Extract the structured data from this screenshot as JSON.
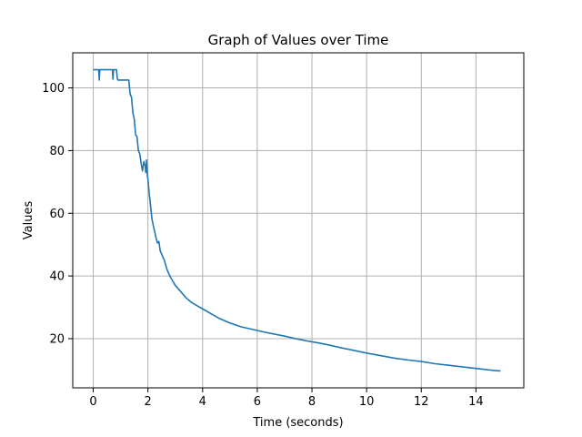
{
  "chart_data": {
    "type": "line",
    "title": "Graph of Values over Time",
    "xlabel": "Time (seconds)",
    "ylabel": "Values",
    "xlim": [
      -0.75,
      15.75
    ],
    "ylim": [
      4.3,
      111.2
    ],
    "xticks": [
      0,
      2,
      4,
      6,
      8,
      10,
      12,
      14
    ],
    "yticks": [
      20,
      40,
      60,
      80,
      100
    ],
    "grid": true,
    "series": [
      {
        "color": "#1f77b4",
        "x": [
          0,
          0.15,
          0.2,
          0.22,
          0.24,
          0.3,
          0.5,
          0.7,
          0.72,
          0.74,
          0.78,
          0.85,
          0.88,
          0.9,
          1.0,
          1.1,
          1.3,
          1.35,
          1.4,
          1.45,
          1.5,
          1.55,
          1.6,
          1.65,
          1.7,
          1.75,
          1.8,
          1.85,
          1.9,
          1.92,
          1.95,
          1.98,
          2.0,
          2.02,
          2.05,
          2.08,
          2.1,
          2.15,
          2.2,
          2.25,
          2.3,
          2.35,
          2.4,
          2.45,
          2.5,
          2.55,
          2.6,
          2.65,
          2.7,
          2.75,
          2.8,
          2.9,
          3.0,
          3.2,
          3.4,
          3.6,
          3.8,
          4.0,
          4.3,
          4.6,
          5.0,
          5.4,
          5.8,
          6.2,
          6.6,
          7.0,
          7.4,
          7.8,
          8.2,
          8.6,
          9.0,
          9.5,
          10.0,
          10.5,
          11.0,
          11.5,
          12.0,
          12.5,
          13.0,
          13.5,
          14.0,
          14.3,
          14.5,
          14.7,
          14.9
        ],
        "values": [
          105.8,
          105.8,
          105.8,
          102.5,
          105.8,
          105.8,
          105.8,
          105.8,
          102.8,
          105.8,
          105.8,
          105.8,
          103.0,
          102.5,
          102.5,
          102.5,
          102.5,
          98.0,
          97.0,
          92.0,
          90.0,
          85.0,
          84.5,
          80.0,
          79.0,
          76.0,
          73.5,
          76.5,
          75.0,
          73.0,
          77.0,
          72.0,
          71.0,
          69.0,
          66.0,
          64.0,
          62.0,
          58.0,
          56.0,
          54.0,
          52.0,
          50.5,
          51.0,
          48.0,
          47.0,
          46.0,
          45.0,
          43.5,
          42.0,
          41.0,
          40.0,
          38.5,
          37.0,
          35.0,
          33.0,
          31.5,
          30.5,
          29.5,
          28.0,
          26.5,
          25.0,
          23.8,
          23.0,
          22.2,
          21.5,
          20.8,
          20.0,
          19.3,
          18.7,
          18.0,
          17.2,
          16.3,
          15.4,
          14.6,
          13.8,
          13.2,
          12.7,
          12.0,
          11.5,
          11.0,
          10.5,
          10.2,
          10.0,
          9.8,
          9.7
        ]
      }
    ]
  }
}
